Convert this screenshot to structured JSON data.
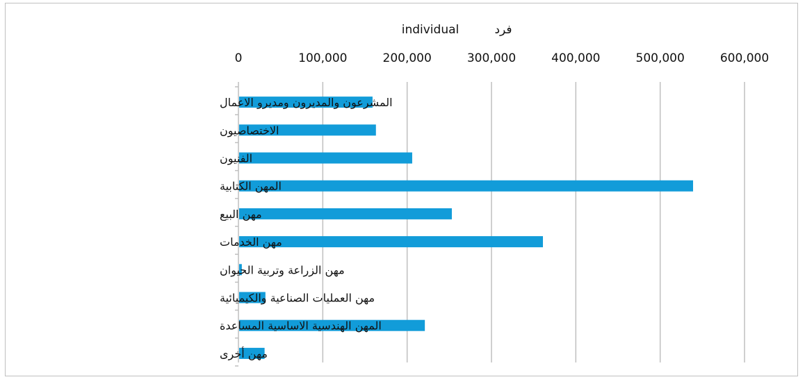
{
  "chart_data": {
    "type": "bar",
    "orientation": "horizontal",
    "axis_unit_en": "individual",
    "axis_unit_ar": "فرد",
    "categories": [
      "المشرعون والمديرون ومديرو الاعمال",
      "الاختصاصيون",
      "الفنيون",
      "المهن الكتابية",
      "مهن البيع",
      "مهن الخدمات",
      "مهن الزراعة وتربية الحيوان",
      "مهن العمليات الصناعية والكيميائية",
      "المهن الهندسية الاساسية المساعدة",
      "مهن أخرى"
    ],
    "values": [
      159000,
      163000,
      206000,
      539000,
      253000,
      361000,
      4000,
      32000,
      221000,
      31000
    ],
    "xlim": [
      0,
      600000
    ],
    "x_ticks": [
      "0",
      "100,000",
      "200,000",
      "300,000",
      "400,000",
      "500,000",
      "600,000"
    ],
    "axis_position": "top",
    "grid": true,
    "legend": "none",
    "bar_color": "#129cd9",
    "grid_color": "#bfbfbf"
  }
}
